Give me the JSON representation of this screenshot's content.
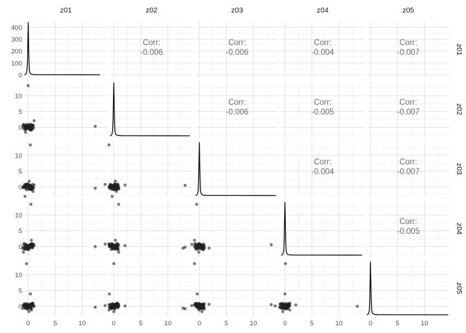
{
  "chart_data": {
    "type": "scatterplot-matrix",
    "variables": [
      "z01",
      "z02",
      "z03",
      "z04",
      "z05"
    ],
    "panels": {
      "diagonal": "density",
      "upper": "correlation",
      "lower": "scatter"
    },
    "corr_label": "Corr:",
    "correlations": {
      "z01": {
        "z02": "-0.006",
        "z03": "-0.006",
        "z04": "-0.004",
        "z05": "-0.007"
      },
      "z02": {
        "z03": "-0.006",
        "z04": "-0.005",
        "z05": "-0.007"
      },
      "z03": {
        "z04": "-0.004",
        "z05": "-0.007"
      },
      "z04": {
        "z05": "-0.005"
      }
    },
    "axes": {
      "x_ticks": [
        0,
        5,
        10
      ],
      "x_minor_ticks": [
        2.5,
        7.5,
        12.5
      ],
      "y_ticks_scatter": [
        0,
        5,
        10
      ],
      "y_minor_ticks_scatter": [
        -2.5,
        2.5,
        7.5,
        12.5
      ],
      "y_ticks_first_row": [
        0,
        100,
        200,
        300,
        400
      ],
      "y_minor_ticks_first_row": [
        50,
        150,
        250,
        350
      ],
      "x_range": [
        -0.6,
        14.6
      ],
      "y_range_scatter": [
        -3.2,
        14.6
      ],
      "y_range_first_row": [
        -23,
        448
      ],
      "grid": true
    },
    "density_peak_first_row": 440,
    "observations": {
      "z01": [
        0.1,
        -0.3,
        0.5,
        -0.2,
        0.8,
        -0.6,
        0.2,
        0.4,
        -0.5,
        0.3,
        0.0,
        -0.8,
        0.6,
        -0.1,
        0.9,
        -0.4,
        0.7,
        -0.7,
        0.2,
        -0.2,
        0.4,
        -0.9,
        0.1,
        0.6,
        -0.3,
        1.1,
        -0.5,
        0.3,
        0.8,
        -1.0,
        0.5,
        -0.2,
        0.0,
        0.7,
        -0.6,
        0.2,
        1.0,
        -0.4,
        0.6,
        -0.1,
        -0.3,
        0.3,
        -0.7,
        0.1,
        0.5,
        -0.5,
        0.8,
        0.0,
        -0.9,
        0.4,
        12.4,
        -0.2,
        0.6,
        0.2,
        -0.4,
        0.9,
        -0.6,
        0.3,
        -0.1,
        0.7
      ],
      "z02": [
        -0.2,
        0.4,
        -0.6,
        0.1,
        0.7,
        -0.3,
        0.5,
        -0.8,
        0.2,
        0.9,
        13.2,
        -0.4,
        0.3,
        -0.1,
        0.6,
        -0.7,
        0.1,
        0.8,
        -0.5,
        0.2,
        -0.9,
        0.5,
        0.0,
        -0.3,
        0.7,
        2.1,
        -0.2,
        0.4,
        -0.6,
        0.1,
        0.9,
        -0.4,
        0.2,
        0.6,
        -0.8,
        0.3,
        -0.1,
        0.5,
        -0.5,
        0.8,
        0.0,
        -0.7,
        0.4,
        0.1,
        -0.3,
        -1.6,
        0.6,
        -0.2,
        0.9,
        -0.5,
        0.3,
        0.7,
        -0.9,
        0.2,
        -0.4,
        0.5,
        0.1,
        -0.6,
        0.8,
        -0.1
      ],
      "z03": [
        0.3,
        -0.5,
        0.2,
        0.8,
        -0.2,
        -3.0,
        0.6,
        -0.4,
        0.1,
        -0.7,
        0.5,
        0.0,
        -0.9,
        0.4,
        -0.1,
        0.7,
        -0.3,
        0.2,
        -0.6,
        0.9,
        13.3,
        -0.2,
        0.5,
        -0.8,
        0.1,
        0.6,
        -0.4,
        0.3,
        0.8,
        -0.1,
        -0.5,
        0.2,
        0.9,
        -0.7,
        0.0,
        1.8,
        -0.3,
        0.6,
        -0.2,
        0.4,
        -0.9,
        0.1,
        0.7,
        -0.5,
        0.3,
        0.8,
        -0.6,
        0.2,
        -0.1,
        0.5,
        -0.4,
        0.9,
        0.0,
        -0.8,
        0.6,
        -1.4,
        0.3,
        -0.2,
        0.7,
        0.1
      ],
      "z04": [
        0.2,
        -0.4,
        0.6,
        -0.1,
        0.8,
        -0.5,
        0.3,
        0.0,
        -0.7,
        0.4,
        -0.2,
        0.9,
        2.0,
        -0.6,
        0.1,
        0.5,
        -0.3,
        0.7,
        -0.9,
        0.2,
        0.6,
        -0.1,
        -0.4,
        0.8,
        -0.2,
        0.3,
        -0.8,
        0.5,
        0.1,
        -0.6,
        13.4,
        0.4,
        -0.3,
        0.9,
        0.0,
        -0.5,
        0.7,
        -0.2,
        0.4,
        -0.7,
        0.1,
        0.6,
        -0.9,
        0.3,
        -0.1,
        0.8,
        -0.4,
        0.2,
        -1.8,
        0.5,
        0.0,
        -0.6,
        0.9,
        -0.3,
        0.4,
        0.7,
        -0.2,
        0.1,
        -1.0,
        0.5
      ],
      "z05": [
        -0.1,
        0.5,
        -0.4,
        0.2,
        0.8,
        -0.6,
        0.3,
        3.9,
        -0.2,
        0.6,
        -0.8,
        0.1,
        0.4,
        -0.5,
        0.9,
        -0.3,
        0.2,
        0.7,
        -0.1,
        -0.9,
        0.5,
        0.3,
        -1.7,
        0.6,
        -0.4,
        0.1,
        0.8,
        -0.2,
        0.5,
        -0.7,
        0.0,
        0.4,
        -0.5,
        0.9,
        -0.3,
        0.6,
        -0.1,
        0.2,
        -0.8,
        0.3,
        13.5,
        -0.4,
        0.7,
        0.0,
        -0.6,
        0.2,
        0.9,
        -0.5,
        0.1,
        0.6,
        -0.3,
        0.8,
        -1.2,
        0.4,
        -0.7,
        0.2,
        0.5,
        0.0,
        -0.4,
        0.7
      ]
    }
  },
  "colors": {
    "background": "#ffffff",
    "grid_major": "#e3e3e3",
    "grid_minor": "#f2f2f2",
    "point": "#1f1f1f",
    "density_line": "#000000",
    "corr_text": "#6b6b6b",
    "axis_text": "#4d4d4d",
    "strip_text": "#141414"
  }
}
